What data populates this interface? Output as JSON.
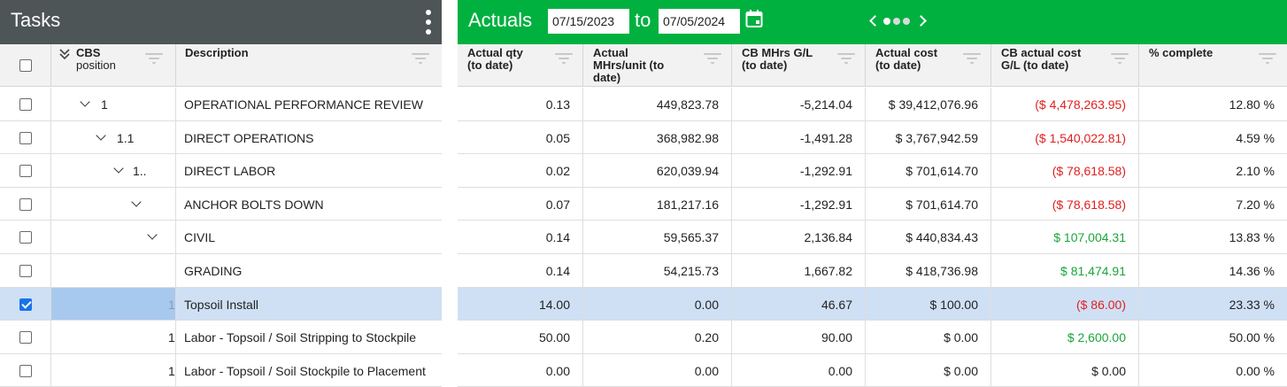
{
  "tasks_panel": {
    "title": "Tasks",
    "columns": {
      "cbs_line1": "CBS",
      "cbs_line2": "position",
      "description": "Description"
    }
  },
  "actuals_panel": {
    "title": "Actuals",
    "date_from": "07/15/2023",
    "to_label": "to",
    "date_to": "07/05/2024",
    "columns": [
      [
        "Actual qty",
        "(to date)",
        ""
      ],
      [
        "Actual",
        "MHrs/unit (to",
        "date)"
      ],
      [
        "CB MHrs G/L",
        "(to date)",
        ""
      ],
      [
        "Actual cost",
        "(to date)",
        ""
      ],
      [
        "CB actual cost",
        "G/L (to date)",
        ""
      ],
      [
        "% complete",
        "",
        ""
      ]
    ]
  },
  "colors": {
    "tasks_header_bg": "#4d5556",
    "actuals_header_bg": "#00b140",
    "negative": "#e02020",
    "positive": "#1aa53a",
    "selected_row": "#cfe0f5"
  },
  "rows": [
    {
      "cbs": "1",
      "desc": "OPERATIONAL PERFORMANCE REVIEW",
      "checked": false,
      "qty": "0.13",
      "mhrs_unit": "449,823.78",
      "mhrs_gl": "-5,214.04",
      "cost": "$ 39,412,076.96",
      "cost_gl": "($ 4,478,263.95)",
      "gl_status": "neg",
      "pct": "12.80 %"
    },
    {
      "cbs": "1.1",
      "desc": "DIRECT OPERATIONS",
      "checked": false,
      "qty": "0.05",
      "mhrs_unit": "368,982.98",
      "mhrs_gl": "-1,491.28",
      "cost": "$ 3,767,942.59",
      "cost_gl": "($ 1,540,022.81)",
      "gl_status": "neg",
      "pct": "4.59 %"
    },
    {
      "cbs": "1..",
      "desc": "DIRECT LABOR",
      "checked": false,
      "qty": "0.02",
      "mhrs_unit": "620,039.94",
      "mhrs_gl": "-1,292.91",
      "cost": "$ 701,614.70",
      "cost_gl": "($ 78,618.58)",
      "gl_status": "neg",
      "pct": "2.10 %"
    },
    {
      "cbs": "",
      "desc": "ANCHOR BOLTS DOWN",
      "checked": false,
      "qty": "0.07",
      "mhrs_unit": "181,217.16",
      "mhrs_gl": "-1,292.91",
      "cost": "$ 701,614.70",
      "cost_gl": "($ 78,618.58)",
      "gl_status": "neg",
      "pct": "7.20 %"
    },
    {
      "cbs": "",
      "desc": "CIVIL",
      "checked": false,
      "qty": "0.14",
      "mhrs_unit": "59,565.37",
      "mhrs_gl": "2,136.84",
      "cost": "$ 440,834.43",
      "cost_gl": "$ 107,004.31",
      "gl_status": "pos",
      "pct": "13.83 %"
    },
    {
      "cbs": "",
      "desc": "GRADING",
      "checked": false,
      "qty": "0.14",
      "mhrs_unit": "54,215.73",
      "mhrs_gl": "1,667.82",
      "cost": "$ 418,736.98",
      "cost_gl": "$ 81,474.91",
      "gl_status": "pos",
      "pct": "14.36 %"
    },
    {
      "cbs": "1",
      "desc": "Topsoil Install",
      "checked": true,
      "qty": "14.00",
      "mhrs_unit": "0.00",
      "mhrs_gl": "46.67",
      "cost": "$ 100.00",
      "cost_gl": "($ 86.00)",
      "gl_status": "neg",
      "pct": "23.33 %"
    },
    {
      "cbs": "1",
      "desc": "Labor - Topsoil / Soil Stripping to Stockpile",
      "checked": false,
      "qty": "50.00",
      "mhrs_unit": "0.20",
      "mhrs_gl": "90.00",
      "cost": "$ 0.00",
      "cost_gl": "$ 2,600.00",
      "gl_status": "pos",
      "pct": "50.00 %"
    },
    {
      "cbs": "1",
      "desc": "Labor - Topsoil / Soil Stockpile to Placement",
      "checked": false,
      "qty": "0.00",
      "mhrs_unit": "0.00",
      "mhrs_gl": "0.00",
      "cost": "$ 0.00",
      "cost_gl": "$ 0.00",
      "gl_status": "none",
      "pct": "0.00 %"
    }
  ]
}
